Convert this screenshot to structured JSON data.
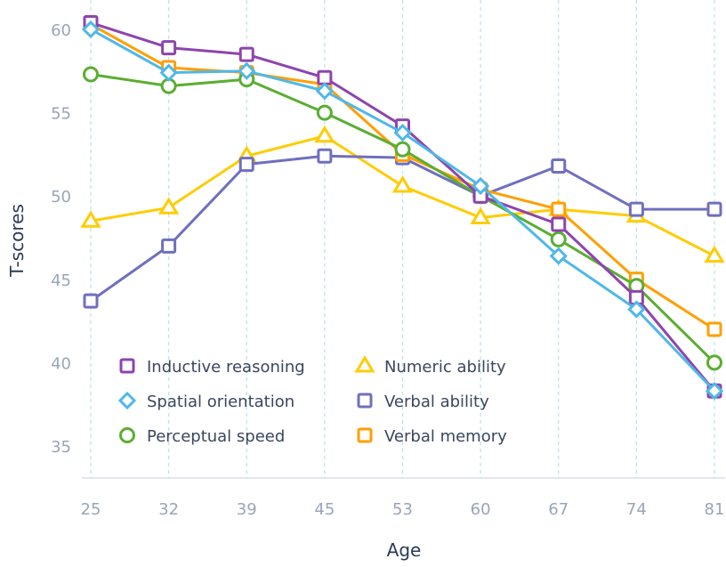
{
  "chart_data": {
    "type": "line",
    "title": "",
    "xlabel": "Age",
    "ylabel": "T-scores",
    "categories": [
      "25",
      "32",
      "39",
      "45",
      "53",
      "60",
      "67",
      "74",
      "81"
    ],
    "ylim": [
      33,
      62
    ],
    "yticks": [
      35,
      40,
      45,
      50,
      55,
      60
    ],
    "grid": "vertical dashed",
    "legend_placement": "bottom-left",
    "series": [
      {
        "name": "Inductive reasoning",
        "marker": "square",
        "color": "#8e44ad",
        "values": [
          60.4,
          58.9,
          58.5,
          57.1,
          54.2,
          50.0,
          48.3,
          43.9,
          38.3
        ]
      },
      {
        "name": "Spatial orientation",
        "marker": "diamond",
        "color": "#4fb8e8",
        "values": [
          60.0,
          57.4,
          57.5,
          56.3,
          53.8,
          50.6,
          46.4,
          43.2,
          38.3
        ]
      },
      {
        "name": "Perceptual speed",
        "marker": "circle",
        "color": "#5aae32",
        "values": [
          57.3,
          56.6,
          57.0,
          55.0,
          52.8,
          50.0,
          47.4,
          44.6,
          40.0
        ]
      },
      {
        "name": "Numeric ability",
        "marker": "triangle",
        "color": "#ffcc00",
        "values": [
          48.5,
          49.3,
          52.4,
          53.6,
          50.6,
          48.7,
          49.2,
          48.8,
          46.4
        ]
      },
      {
        "name": "Verbal ability",
        "marker": "square",
        "color": "#6f6fbf",
        "values": [
          43.7,
          47.0,
          51.9,
          52.4,
          52.3,
          50.0,
          51.8,
          49.2,
          49.2
        ]
      },
      {
        "name": "Verbal memory",
        "marker": "square",
        "color": "#ff9f00",
        "values": [
          60.3,
          57.7,
          57.4,
          56.7,
          52.5,
          50.4,
          49.2,
          45.0,
          42.0
        ]
      }
    ]
  }
}
